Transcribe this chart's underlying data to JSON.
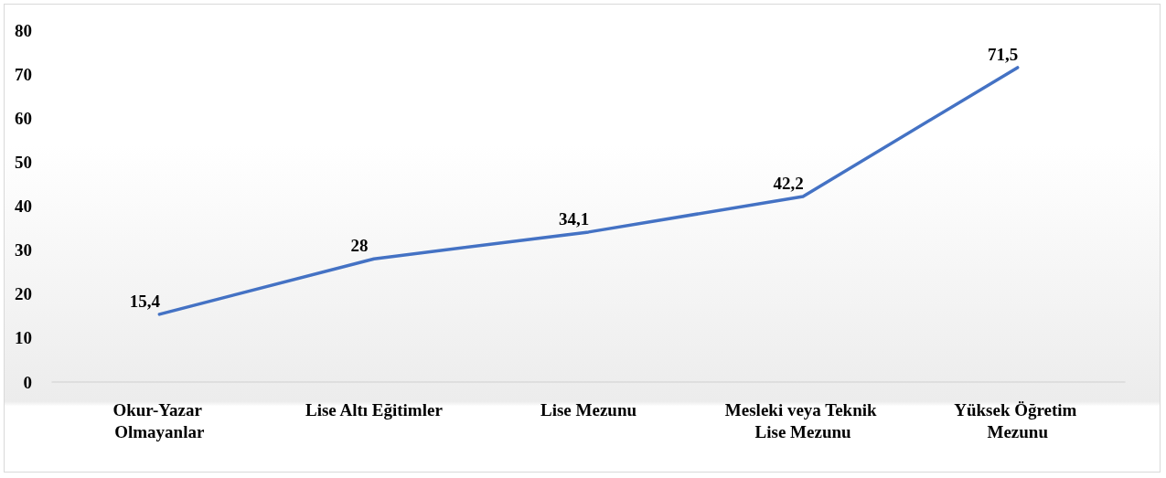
{
  "chart_data": {
    "type": "line",
    "categories": [
      "Okur-Yazar Olmayanlar",
      "Lise Altı Eğitimler",
      "Lise Mezunu",
      "Mesleki veya Teknik Lise Mezunu",
      "Yüksek Öğretim Mezunu"
    ],
    "values": [
      15.4,
      28,
      34.1,
      42.2,
      71.5
    ],
    "value_labels": [
      "15,4",
      "28",
      "34,1",
      "42,2",
      "71,5"
    ],
    "color": "#4472c4",
    "ylim": [
      0,
      80
    ],
    "yticks": [
      0,
      10,
      20,
      30,
      40,
      50,
      60,
      70,
      80
    ],
    "grid": false,
    "marker": "none",
    "line_style": "solid"
  }
}
